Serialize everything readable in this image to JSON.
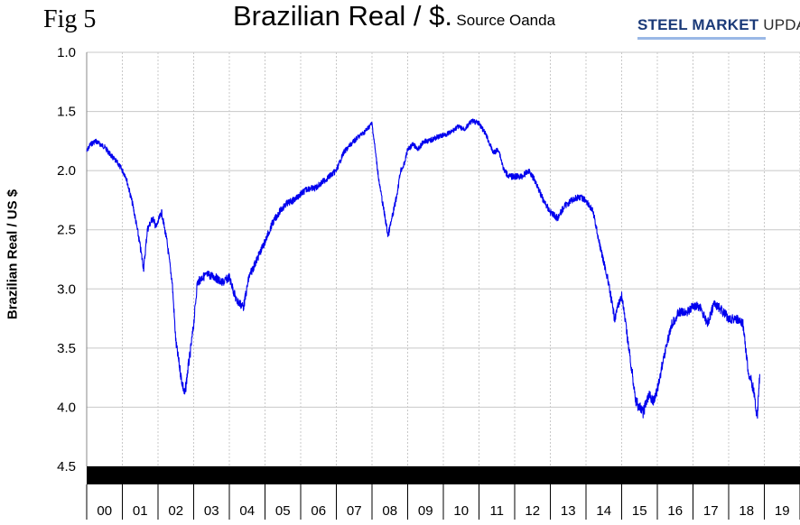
{
  "figure_label": "Fig 5",
  "title": "Brazilian Real / $.",
  "subtitle": "Source Oanda",
  "logo_text": {
    "part1": "STEEL MARKET",
    "part2": " UPDATE"
  },
  "colors": {
    "line": "#0000ee",
    "grid": "#c8c8c8",
    "band": "#000000"
  },
  "chart_data": {
    "type": "line",
    "title": "Brazilian Real / $.",
    "ylabel": "Brazilian Real / US $",
    "xlabel": "",
    "ylim": [
      1.0,
      4.5
    ],
    "y_inverted": true,
    "yticks": [
      "1.0",
      "1.5",
      "2.0",
      "2.5",
      "3.0",
      "3.5",
      "4.0",
      "4.5"
    ],
    "xticks": [
      "00",
      "01",
      "02",
      "03",
      "04",
      "05",
      "06",
      "07",
      "08",
      "09",
      "10",
      "11",
      "12",
      "13",
      "14",
      "15",
      "16",
      "17",
      "18",
      "19"
    ],
    "grid": true,
    "series": [
      {
        "x": [
          2000.0,
          2000.1,
          2000.25,
          2000.5,
          2000.7,
          2000.9,
          2001.1,
          2001.3,
          2001.45,
          2001.6,
          2001.7,
          2001.85,
          2001.95,
          2002.1,
          2002.25,
          2002.4,
          2002.5,
          2002.65,
          2002.75,
          2002.85,
          2002.9,
          2003.0,
          2003.1,
          2003.25,
          2003.4,
          2003.6,
          2003.8,
          2004.0,
          2004.2,
          2004.4,
          2004.55,
          2004.7,
          2004.85,
          2005.0,
          2005.2,
          2005.4,
          2005.6,
          2005.8,
          2006.0,
          2006.2,
          2006.4,
          2006.6,
          2006.8,
          2007.0,
          2007.2,
          2007.4,
          2007.6,
          2007.8,
          2008.0,
          2008.2,
          2008.45,
          2008.6,
          2008.7,
          2008.8,
          2008.9,
          2009.0,
          2009.15,
          2009.3,
          2009.45,
          2009.6,
          2009.8,
          2010.0,
          2010.2,
          2010.4,
          2010.6,
          2010.8,
          2011.0,
          2011.2,
          2011.4,
          2011.55,
          2011.7,
          2011.85,
          2012.0,
          2012.2,
          2012.4,
          2012.6,
          2012.8,
          2013.0,
          2013.2,
          2013.4,
          2013.6,
          2013.8,
          2014.0,
          2014.2,
          2014.4,
          2014.6,
          2014.8,
          2015.0,
          2015.2,
          2015.4,
          2015.6,
          2015.75,
          2015.9,
          2016.0,
          2016.2,
          2016.4,
          2016.6,
          2016.8,
          2017.0,
          2017.2,
          2017.4,
          2017.6,
          2017.8,
          2018.0,
          2018.2,
          2018.4,
          2018.55,
          2018.7,
          2018.8,
          2018.87
        ],
        "y": [
          1.84,
          1.78,
          1.75,
          1.8,
          1.88,
          1.95,
          2.05,
          2.3,
          2.55,
          2.83,
          2.5,
          2.4,
          2.48,
          2.35,
          2.6,
          2.95,
          3.45,
          3.75,
          3.9,
          3.65,
          3.55,
          3.3,
          2.95,
          2.9,
          2.88,
          2.9,
          2.95,
          2.9,
          3.1,
          3.15,
          2.9,
          2.8,
          2.7,
          2.6,
          2.45,
          2.35,
          2.28,
          2.25,
          2.2,
          2.15,
          2.15,
          2.1,
          2.05,
          2.0,
          1.85,
          1.78,
          1.72,
          1.67,
          1.6,
          2.1,
          2.55,
          2.35,
          2.2,
          2.0,
          1.95,
          1.82,
          1.78,
          1.82,
          1.75,
          1.75,
          1.72,
          1.7,
          1.68,
          1.63,
          1.65,
          1.58,
          1.6,
          1.7,
          1.85,
          1.82,
          2.0,
          2.05,
          2.05,
          2.05,
          2.0,
          2.1,
          2.25,
          2.35,
          2.4,
          2.3,
          2.25,
          2.22,
          2.25,
          2.35,
          2.65,
          2.9,
          3.25,
          3.05,
          3.5,
          3.95,
          4.05,
          3.9,
          3.95,
          3.85,
          3.55,
          3.3,
          3.2,
          3.2,
          3.15,
          3.15,
          3.3,
          3.12,
          3.18,
          3.25,
          3.25,
          3.3,
          3.7,
          3.85,
          4.1,
          3.72
        ]
      }
    ]
  }
}
